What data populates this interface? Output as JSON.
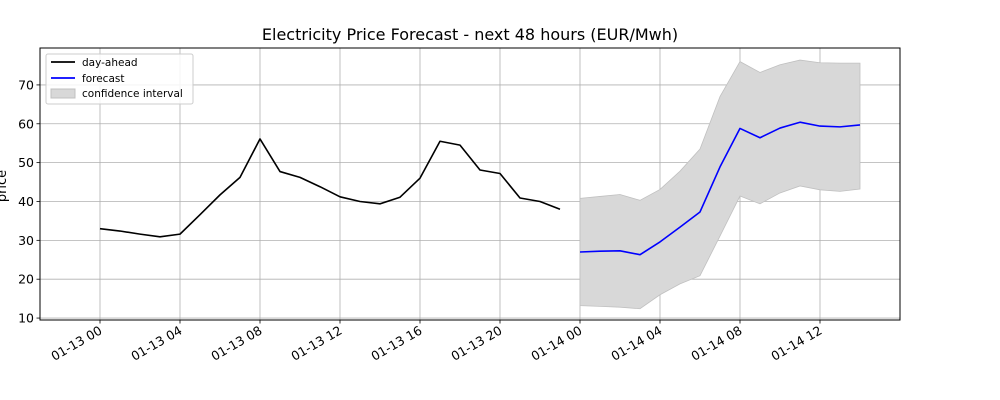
{
  "chart_data": {
    "type": "line",
    "title": "Electricity Price Forecast - next 48 hours (EUR/Mwh)",
    "ylabel": "price",
    "xlabel": "",
    "x_start": "2025-01-13 00:00",
    "x_end": "2025-01-14 14:00",
    "xlim": [
      "2025-01-12 21:00",
      "2025-01-14 16:00"
    ],
    "ylim": [
      9.5,
      79.5
    ],
    "yticks": [
      10,
      20,
      30,
      40,
      50,
      60,
      70
    ],
    "xticks": [
      {
        "t": "2025-01-13 00:00",
        "label": "01-13 00"
      },
      {
        "t": "2025-01-13 04:00",
        "label": "01-13 04"
      },
      {
        "t": "2025-01-13 08:00",
        "label": "01-13 08"
      },
      {
        "t": "2025-01-13 12:00",
        "label": "01-13 12"
      },
      {
        "t": "2025-01-13 16:00",
        "label": "01-13 16"
      },
      {
        "t": "2025-01-13 20:00",
        "label": "01-13 20"
      },
      {
        "t": "2025-01-14 00:00",
        "label": "01-14 00"
      },
      {
        "t": "2025-01-14 04:00",
        "label": "01-14 04"
      },
      {
        "t": "2025-01-14 08:00",
        "label": "01-14 08"
      },
      {
        "t": "2025-01-14 12:00",
        "label": "01-14 12"
      }
    ],
    "grid": true,
    "legend_position": "top-left",
    "series": [
      {
        "name": "day-ahead",
        "color": "#000000",
        "x": [
          "2025-01-13 00:00",
          "2025-01-13 01:00",
          "2025-01-13 02:00",
          "2025-01-13 03:00",
          "2025-01-13 04:00",
          "2025-01-13 05:00",
          "2025-01-13 06:00",
          "2025-01-13 07:00",
          "2025-01-13 08:00",
          "2025-01-13 09:00",
          "2025-01-13 10:00",
          "2025-01-13 11:00",
          "2025-01-13 12:00",
          "2025-01-13 13:00",
          "2025-01-13 14:00",
          "2025-01-13 15:00",
          "2025-01-13 16:00",
          "2025-01-13 17:00",
          "2025-01-13 18:00",
          "2025-01-13 19:00",
          "2025-01-13 20:00",
          "2025-01-13 21:00",
          "2025-01-13 22:00",
          "2025-01-13 23:00"
        ],
        "y": [
          33.0,
          32.4,
          31.6,
          30.9,
          31.6,
          36.6,
          41.7,
          46.2,
          56.1,
          47.7,
          46.2,
          43.8,
          41.2,
          40.0,
          39.4,
          41.1,
          46.0,
          55.5,
          54.5,
          48.1,
          47.2,
          40.9,
          40.0,
          38.0
        ]
      },
      {
        "name": "forecast",
        "color": "#0000ff",
        "x": [
          "2025-01-14 00:00",
          "2025-01-14 01:00",
          "2025-01-14 02:00",
          "2025-01-14 03:00",
          "2025-01-14 04:00",
          "2025-01-14 05:00",
          "2025-01-14 06:00",
          "2025-01-14 07:00",
          "2025-01-14 08:00",
          "2025-01-14 09:00",
          "2025-01-14 10:00",
          "2025-01-14 11:00",
          "2025-01-14 12:00",
          "2025-01-14 13:00",
          "2025-01-14 14:00"
        ],
        "y": [
          27.0,
          27.2,
          27.3,
          26.3,
          29.6,
          33.4,
          37.3,
          48.9,
          58.8,
          56.4,
          58.9,
          60.4,
          59.4,
          59.2,
          59.7
        ]
      }
    ],
    "band": {
      "name": "confidence interval",
      "color": "#d8d8d8",
      "edge_color": "#c0c0c0",
      "x": [
        "2025-01-14 00:00",
        "2025-01-14 01:00",
        "2025-01-14 02:00",
        "2025-01-14 03:00",
        "2025-01-14 04:00",
        "2025-01-14 05:00",
        "2025-01-14 06:00",
        "2025-01-14 07:00",
        "2025-01-14 08:00",
        "2025-01-14 09:00",
        "2025-01-14 10:00",
        "2025-01-14 11:00",
        "2025-01-14 12:00",
        "2025-01-14 13:00",
        "2025-01-14 14:00"
      ],
      "lower": [
        13.2,
        13.0,
        12.8,
        12.4,
        16.0,
        18.8,
        20.9,
        31.1,
        41.4,
        39.4,
        42.2,
        44.0,
        43.0,
        42.6,
        43.2
      ],
      "upper": [
        40.8,
        41.3,
        41.8,
        40.3,
        43.1,
        47.8,
        53.5,
        67.0,
        76.0,
        73.2,
        75.2,
        76.4,
        75.7,
        75.6,
        75.6
      ]
    }
  }
}
